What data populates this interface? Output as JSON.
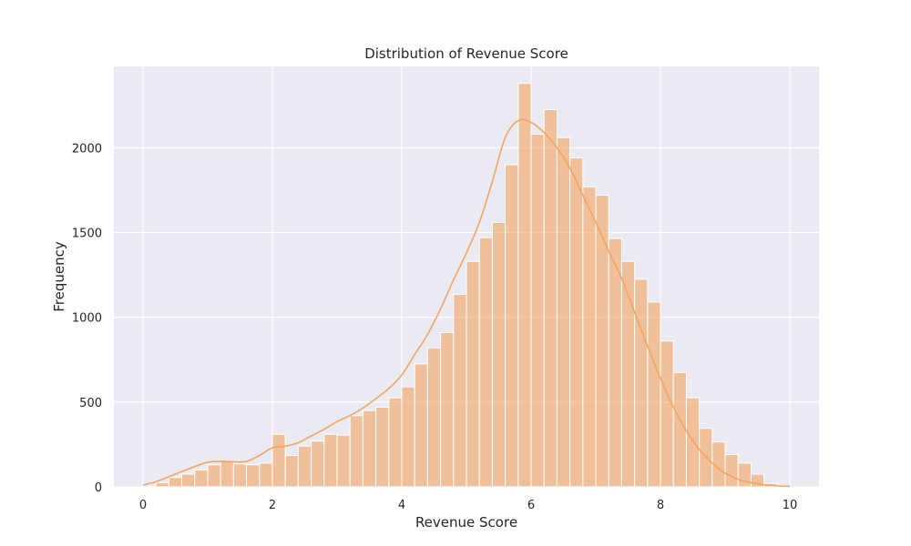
{
  "chart_data": {
    "type": "bar",
    "title": "Distribution of Revenue Score",
    "xlabel": "Revenue Score",
    "ylabel": "Frequency",
    "xlim": [
      -0.45,
      10.45
    ],
    "ylim": [
      0,
      2480
    ],
    "grid": true,
    "background": "#eaeaf2",
    "bar_color": "#f4a460",
    "bar_opacity": 0.6,
    "kde_color": "#f4a460",
    "xticks": [
      0,
      2,
      4,
      6,
      8,
      10
    ],
    "xtick_labels": [
      "0",
      "2",
      "4",
      "6",
      "8",
      "10"
    ],
    "yticks": [
      0,
      500,
      1000,
      1500,
      2000
    ],
    "ytick_labels": [
      "0",
      "500",
      "1000",
      "1500",
      "2000"
    ],
    "bin_start": 0.0,
    "bin_width": 0.2,
    "values": [
      0,
      25,
      55,
      75,
      100,
      130,
      150,
      135,
      130,
      140,
      310,
      185,
      240,
      270,
      310,
      305,
      420,
      450,
      470,
      525,
      590,
      725,
      820,
      910,
      1135,
      1330,
      1470,
      1560,
      1900,
      2380,
      2080,
      2225,
      2060,
      1940,
      1770,
      1720,
      1465,
      1330,
      1225,
      1090,
      860,
      675,
      525,
      345,
      265,
      190,
      140,
      75,
      20,
      5
    ],
    "kde": {
      "x": [
        0.0,
        0.2,
        0.4,
        0.6,
        0.8,
        1.0,
        1.2,
        1.4,
        1.6,
        1.8,
        2.0,
        2.2,
        2.4,
        2.6,
        2.8,
        3.0,
        3.2,
        3.4,
        3.6,
        3.8,
        4.0,
        4.2,
        4.4,
        4.6,
        4.8,
        5.0,
        5.2,
        5.4,
        5.6,
        5.8,
        6.0,
        6.2,
        6.4,
        6.6,
        6.8,
        7.0,
        7.2,
        7.4,
        7.6,
        7.8,
        8.0,
        8.2,
        8.4,
        8.6,
        8.8,
        9.0,
        9.2,
        9.4,
        9.6,
        9.8,
        10.0
      ],
      "y": [
        10,
        30,
        60,
        90,
        120,
        145,
        150,
        148,
        150,
        185,
        230,
        240,
        260,
        300,
        340,
        385,
        420,
        465,
        520,
        580,
        660,
        780,
        900,
        1050,
        1220,
        1380,
        1560,
        1800,
        2060,
        2160,
        2150,
        2090,
        2000,
        1880,
        1720,
        1560,
        1390,
        1230,
        1030,
        830,
        640,
        470,
        330,
        220,
        140,
        80,
        45,
        25,
        12,
        6,
        3
      ]
    }
  }
}
